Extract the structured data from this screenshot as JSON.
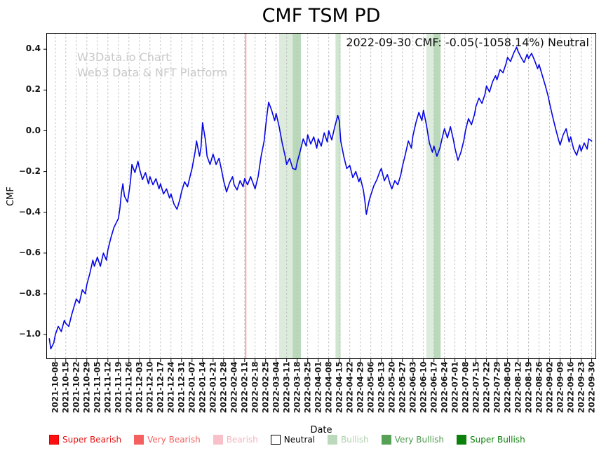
{
  "annotation": "2022-09-30 CMF: -0.05(-1058.14%) Neutral",
  "watermark": {
    "line1": "W3Data.io Chart",
    "line2": "Web3 Data & NFT Platform"
  },
  "chart_data": {
    "type": "line",
    "title": "CMF TSM PD",
    "xlabel": "Date",
    "ylabel": "CMF",
    "ylim": [
      -1.12,
      0.48
    ],
    "xlim_days": [
      -6,
      360
    ],
    "grid": "vertical-dashed",
    "grid_color": "#b9b9b9",
    "line_color": "#0505e6",
    "y_ticks": [
      0.4,
      0.2,
      0.0,
      -0.2,
      -0.4,
      -0.6,
      -0.8,
      -1.0
    ],
    "y_tick_labels": [
      "0.4",
      "0.2",
      "0.0",
      "−0.2",
      "−0.4",
      "−0.6",
      "−0.8",
      "−1.0"
    ],
    "x_tick_labels": [
      "2021-10-08",
      "2021-10-15",
      "2021-10-22",
      "2021-10-29",
      "2021-11-05",
      "2021-11-12",
      "2021-11-19",
      "2021-11-26",
      "2021-12-03",
      "2021-12-10",
      "2021-12-17",
      "2021-12-24",
      "2021-12-31",
      "2022-01-07",
      "2022-01-14",
      "2022-01-21",
      "2022-01-28",
      "2022-02-04",
      "2022-02-11",
      "2022-02-18",
      "2022-02-25",
      "2022-03-04",
      "2022-03-11",
      "2022-03-18",
      "2022-03-25",
      "2022-04-01",
      "2022-04-08",
      "2022-04-15",
      "2022-04-22",
      "2022-04-29",
      "2022-05-06",
      "2022-05-13",
      "2022-05-20",
      "2022-05-27",
      "2022-06-03",
      "2022-06-10",
      "2022-06-17",
      "2022-06-24",
      "2022-07-01",
      "2022-07-08",
      "2022-07-15",
      "2022-07-22",
      "2022-07-29",
      "2022-08-05",
      "2022-08-12",
      "2022-08-19",
      "2022-08-26",
      "2022-09-02",
      "2022-09-09",
      "2022-09-16",
      "2022-09-23",
      "2022-09-30"
    ],
    "bands": [
      {
        "name": "bullish-band",
        "from_day": 149,
        "to_day": 158,
        "color": "#2e8b2e",
        "opacity": 0.17
      },
      {
        "name": "very-bullish-band",
        "from_day": 158,
        "to_day": 163.5,
        "color": "#2e8b2e",
        "opacity": 0.33
      },
      {
        "name": "bullish-band",
        "from_day": 186.5,
        "to_day": 190,
        "color": "#2e8b2e",
        "opacity": 0.22
      },
      {
        "name": "bullish-band",
        "from_day": 247,
        "to_day": 252,
        "color": "#2e8b2e",
        "opacity": 0.17
      },
      {
        "name": "very-bullish-band",
        "from_day": 252,
        "to_day": 256.5,
        "color": "#2e8b2e",
        "opacity": 0.33
      },
      {
        "name": "bearish-event-line",
        "from_day": 126.2,
        "to_day": 127.2,
        "color": "#ff4040",
        "opacity": 0.45
      }
    ],
    "series": [
      {
        "name": "CMF",
        "points": [
          [
            -4,
            -1.02
          ],
          [
            -3,
            -1.07
          ],
          [
            -1,
            -1.04
          ],
          [
            0,
            -1.0
          ],
          [
            2,
            -0.96
          ],
          [
            4,
            -0.985
          ],
          [
            6,
            -0.93
          ],
          [
            7,
            -0.945
          ],
          [
            9,
            -0.96
          ],
          [
            11,
            -0.9
          ],
          [
            13,
            -0.85
          ],
          [
            14,
            -0.825
          ],
          [
            16,
            -0.845
          ],
          [
            18,
            -0.78
          ],
          [
            20,
            -0.8
          ],
          [
            21,
            -0.755
          ],
          [
            23,
            -0.7
          ],
          [
            25,
            -0.635
          ],
          [
            26,
            -0.665
          ],
          [
            28,
            -0.62
          ],
          [
            30,
            -0.665
          ],
          [
            32,
            -0.6
          ],
          [
            34,
            -0.635
          ],
          [
            35,
            -0.585
          ],
          [
            37,
            -0.525
          ],
          [
            39,
            -0.475
          ],
          [
            41,
            -0.445
          ],
          [
            42,
            -0.43
          ],
          [
            43,
            -0.38
          ],
          [
            44,
            -0.305
          ],
          [
            45,
            -0.26
          ],
          [
            46,
            -0.32
          ],
          [
            48,
            -0.35
          ],
          [
            49,
            -0.305
          ],
          [
            50,
            -0.25
          ],
          [
            51,
            -0.165
          ],
          [
            53,
            -0.205
          ],
          [
            55,
            -0.15
          ],
          [
            56,
            -0.185
          ],
          [
            58,
            -0.24
          ],
          [
            60,
            -0.205
          ],
          [
            62,
            -0.26
          ],
          [
            63,
            -0.225
          ],
          [
            65,
            -0.265
          ],
          [
            67,
            -0.235
          ],
          [
            69,
            -0.285
          ],
          [
            70,
            -0.26
          ],
          [
            72,
            -0.31
          ],
          [
            74,
            -0.285
          ],
          [
            76,
            -0.33
          ],
          [
            77,
            -0.31
          ],
          [
            79,
            -0.36
          ],
          [
            81,
            -0.385
          ],
          [
            83,
            -0.335
          ],
          [
            84,
            -0.3
          ],
          [
            86,
            -0.25
          ],
          [
            88,
            -0.275
          ],
          [
            90,
            -0.215
          ],
          [
            91,
            -0.185
          ],
          [
            93,
            -0.105
          ],
          [
            94,
            -0.05
          ],
          [
            96,
            -0.125
          ],
          [
            97,
            -0.08
          ],
          [
            98,
            0.04
          ],
          [
            100,
            -0.05
          ],
          [
            101,
            -0.125
          ],
          [
            103,
            -0.165
          ],
          [
            105,
            -0.115
          ],
          [
            107,
            -0.165
          ],
          [
            109,
            -0.135
          ],
          [
            111,
            -0.205
          ],
          [
            112,
            -0.245
          ],
          [
            114,
            -0.3
          ],
          [
            116,
            -0.255
          ],
          [
            118,
            -0.225
          ],
          [
            119,
            -0.265
          ],
          [
            121,
            -0.29
          ],
          [
            123,
            -0.245
          ],
          [
            125,
            -0.275
          ],
          [
            126,
            -0.235
          ],
          [
            128,
            -0.265
          ],
          [
            130,
            -0.225
          ],
          [
            132,
            -0.265
          ],
          [
            133,
            -0.285
          ],
          [
            135,
            -0.225
          ],
          [
            137,
            -0.125
          ],
          [
            139,
            -0.05
          ],
          [
            140,
            0.02
          ],
          [
            141,
            0.085
          ],
          [
            142,
            0.14
          ],
          [
            144,
            0.1
          ],
          [
            146,
            0.05
          ],
          [
            147,
            0.085
          ],
          [
            149,
            0.02
          ],
          [
            151,
            -0.06
          ],
          [
            153,
            -0.125
          ],
          [
            154,
            -0.165
          ],
          [
            156,
            -0.135
          ],
          [
            158,
            -0.185
          ],
          [
            160,
            -0.19
          ],
          [
            161,
            -0.155
          ],
          [
            163,
            -0.1
          ],
          [
            165,
            -0.04
          ],
          [
            167,
            -0.075
          ],
          [
            168,
            -0.02
          ],
          [
            170,
            -0.065
          ],
          [
            172,
            -0.03
          ],
          [
            174,
            -0.085
          ],
          [
            175,
            -0.04
          ],
          [
            177,
            -0.075
          ],
          [
            179,
            -0.01
          ],
          [
            181,
            -0.055
          ],
          [
            182,
            0.0
          ],
          [
            184,
            -0.045
          ],
          [
            186,
            0.02
          ],
          [
            188,
            0.075
          ],
          [
            189,
            0.05
          ],
          [
            190,
            -0.05
          ],
          [
            192,
            -0.125
          ],
          [
            194,
            -0.185
          ],
          [
            196,
            -0.17
          ],
          [
            198,
            -0.23
          ],
          [
            200,
            -0.2
          ],
          [
            202,
            -0.25
          ],
          [
            203,
            -0.23
          ],
          [
            205,
            -0.29
          ],
          [
            206,
            -0.34
          ],
          [
            207,
            -0.41
          ],
          [
            209,
            -0.34
          ],
          [
            210,
            -0.315
          ],
          [
            212,
            -0.27
          ],
          [
            214,
            -0.24
          ],
          [
            216,
            -0.2
          ],
          [
            217,
            -0.185
          ],
          [
            219,
            -0.245
          ],
          [
            221,
            -0.215
          ],
          [
            223,
            -0.265
          ],
          [
            224,
            -0.285
          ],
          [
            226,
            -0.245
          ],
          [
            228,
            -0.265
          ],
          [
            230,
            -0.215
          ],
          [
            231,
            -0.175
          ],
          [
            233,
            -0.115
          ],
          [
            235,
            -0.05
          ],
          [
            237,
            -0.085
          ],
          [
            238,
            -0.025
          ],
          [
            240,
            0.04
          ],
          [
            242,
            0.09
          ],
          [
            244,
            0.05
          ],
          [
            245,
            0.1
          ],
          [
            247,
            0.03
          ],
          [
            249,
            -0.06
          ],
          [
            251,
            -0.105
          ],
          [
            252,
            -0.075
          ],
          [
            254,
            -0.125
          ],
          [
            256,
            -0.085
          ],
          [
            258,
            -0.02
          ],
          [
            259,
            0.01
          ],
          [
            261,
            -0.035
          ],
          [
            263,
            0.02
          ],
          [
            265,
            -0.045
          ],
          [
            266,
            -0.085
          ],
          [
            268,
            -0.145
          ],
          [
            270,
            -0.105
          ],
          [
            272,
            -0.045
          ],
          [
            273,
            0.0
          ],
          [
            275,
            0.06
          ],
          [
            277,
            0.03
          ],
          [
            279,
            0.08
          ],
          [
            280,
            0.12
          ],
          [
            282,
            0.16
          ],
          [
            284,
            0.135
          ],
          [
            286,
            0.18
          ],
          [
            287,
            0.22
          ],
          [
            289,
            0.19
          ],
          [
            291,
            0.24
          ],
          [
            293,
            0.27
          ],
          [
            294,
            0.25
          ],
          [
            296,
            0.3
          ],
          [
            298,
            0.285
          ],
          [
            300,
            0.33
          ],
          [
            301,
            0.36
          ],
          [
            303,
            0.34
          ],
          [
            305,
            0.38
          ],
          [
            307,
            0.41
          ],
          [
            308,
            0.39
          ],
          [
            310,
            0.36
          ],
          [
            312,
            0.335
          ],
          [
            314,
            0.375
          ],
          [
            315,
            0.355
          ],
          [
            317,
            0.38
          ],
          [
            319,
            0.345
          ],
          [
            321,
            0.305
          ],
          [
            322,
            0.325
          ],
          [
            324,
            0.275
          ],
          [
            326,
            0.225
          ],
          [
            328,
            0.17
          ],
          [
            329,
            0.135
          ],
          [
            331,
            0.07
          ],
          [
            333,
            0.01
          ],
          [
            335,
            -0.045
          ],
          [
            336,
            -0.07
          ],
          [
            338,
            -0.02
          ],
          [
            340,
            0.01
          ],
          [
            342,
            -0.055
          ],
          [
            343,
            -0.03
          ],
          [
            345,
            -0.09
          ],
          [
            347,
            -0.12
          ],
          [
            349,
            -0.07
          ],
          [
            350,
            -0.1
          ],
          [
            352,
            -0.06
          ],
          [
            354,
            -0.09
          ],
          [
            355,
            -0.04
          ],
          [
            357,
            -0.05
          ]
        ]
      }
    ]
  },
  "legend": {
    "items": [
      {
        "label": "Super Bearish",
        "swatch": "#ff0f0f",
        "edge": "#e00000",
        "text_color": "#e31414"
      },
      {
        "label": "Very Bearish",
        "swatch": "#f46060",
        "edge": "#f46060",
        "text_color": "#f46060"
      },
      {
        "label": "Bearish",
        "swatch": "#f8c0c8",
        "edge": "#f8c0c8",
        "text_color": "#f3b6be"
      },
      {
        "label": "Neutral",
        "swatch": "#ffffff",
        "edge": "#000000",
        "text_color": "#000000"
      },
      {
        "label": "Bullish",
        "swatch": "#bcd9bc",
        "edge": "#bcd9bc",
        "text_color": "#aecfae"
      },
      {
        "label": "Very Bullish",
        "swatch": "#56a156",
        "edge": "#56a156",
        "text_color": "#4d9a4d"
      },
      {
        "label": "Super Bullish",
        "swatch": "#0b800b",
        "edge": "#0b800b",
        "text_color": "#0b800b"
      }
    ]
  }
}
